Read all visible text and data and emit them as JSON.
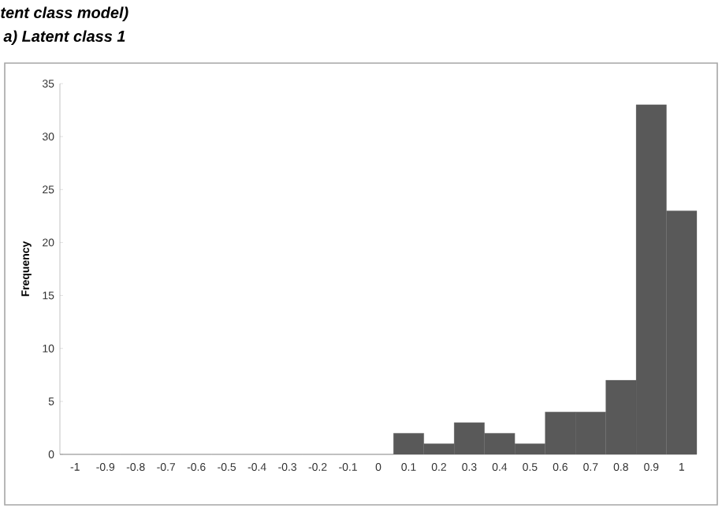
{
  "chart_data": {
    "type": "bar",
    "title": "tent class model)",
    "subtitle": "a)   Latent class 1",
    "ylabel": "Frequency",
    "categories": [
      "-1",
      "-0.9",
      "-0.8",
      "-0.7",
      "-0.6",
      "-0.5",
      "-0.4",
      "-0.3",
      "-0.2",
      "-0.1",
      "0",
      "0.1",
      "0.2",
      "0.3",
      "0.4",
      "0.5",
      "0.6",
      "0.7",
      "0.8",
      "0.9",
      "1"
    ],
    "values": [
      0,
      0,
      0,
      0,
      0,
      0,
      0,
      0,
      0,
      0,
      0,
      2,
      1,
      3,
      2,
      1,
      4,
      4,
      7,
      33,
      23
    ],
    "color": "#595959",
    "ylim": [
      0,
      35
    ],
    "yticks": [
      0,
      5,
      10,
      15,
      20,
      25,
      30,
      35
    ],
    "grid": false
  }
}
